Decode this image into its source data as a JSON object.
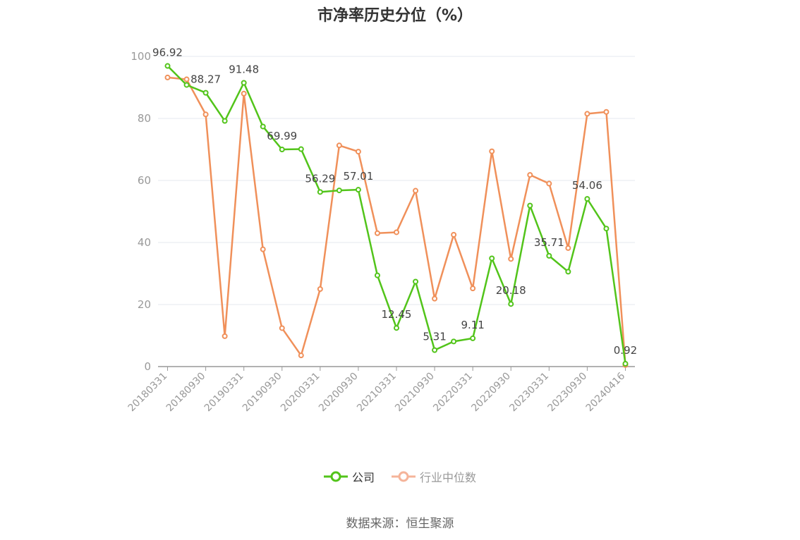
{
  "chart_data": {
    "type": "line",
    "title": "市净率历史分位（%）",
    "ylim": [
      0,
      100
    ],
    "yticks": [
      0,
      20,
      40,
      60,
      80,
      100
    ],
    "x": [
      "20180331",
      "20180630",
      "20180930",
      "20181231",
      "20190331",
      "20190630",
      "20190930",
      "20191231",
      "20200331",
      "20200630",
      "20200930",
      "20201231",
      "20210331",
      "20210630",
      "20210930",
      "20211231",
      "20220331",
      "20220630",
      "20220930",
      "20221231",
      "20230331",
      "20230630",
      "20230930",
      "20231231",
      "20240416"
    ],
    "xtick_labels": [
      "20180331",
      "20180930",
      "20190331",
      "20190930",
      "20200331",
      "20200930",
      "20210331",
      "20210930",
      "20220331",
      "20220930",
      "20230331",
      "20230930",
      "20240416"
    ],
    "series": [
      {
        "name": "公司",
        "color": "#52c41a",
        "values": [
          96.92,
          90.8,
          88.27,
          79.2,
          91.48,
          77.4,
          69.99,
          70.1,
          56.29,
          56.8,
          57.01,
          29.4,
          12.45,
          27.4,
          5.31,
          8.1,
          9.11,
          34.9,
          20.18,
          51.9,
          35.71,
          30.6,
          54.06,
          44.5,
          0.92
        ]
      },
      {
        "name": "行业中位数",
        "color": "#f0905a",
        "values": [
          93.2,
          92.6,
          81.3,
          9.8,
          88.0,
          37.8,
          12.4,
          3.6,
          25.0,
          71.3,
          69.3,
          43.0,
          43.3,
          56.7,
          21.9,
          42.5,
          25.2,
          69.4,
          34.7,
          61.8,
          59.0,
          38.2,
          81.5,
          82.1,
          0.5
        ]
      }
    ],
    "data_labels": [
      {
        "index": 0,
        "text": "96.92"
      },
      {
        "index": 2,
        "text": "88.27"
      },
      {
        "index": 4,
        "text": "91.48"
      },
      {
        "index": 6,
        "text": "69.99"
      },
      {
        "index": 8,
        "text": "56.29"
      },
      {
        "index": 10,
        "text": "57.01"
      },
      {
        "index": 12,
        "text": "12.45"
      },
      {
        "index": 14,
        "text": "5.31"
      },
      {
        "index": 16,
        "text": "9.11"
      },
      {
        "index": 18,
        "text": "20.18"
      },
      {
        "index": 20,
        "text": "35.71"
      },
      {
        "index": 22,
        "text": "54.06"
      },
      {
        "index": 24,
        "text": "0.92"
      }
    ],
    "grid": true,
    "legend_position": "bottom-center"
  },
  "legend": [
    {
      "label": "公司",
      "color": "#52c41a",
      "state": "on"
    },
    {
      "label": "行业中位数",
      "color": "#f5b49a",
      "state": "off"
    }
  ],
  "source": "数据来源：恒生聚源"
}
